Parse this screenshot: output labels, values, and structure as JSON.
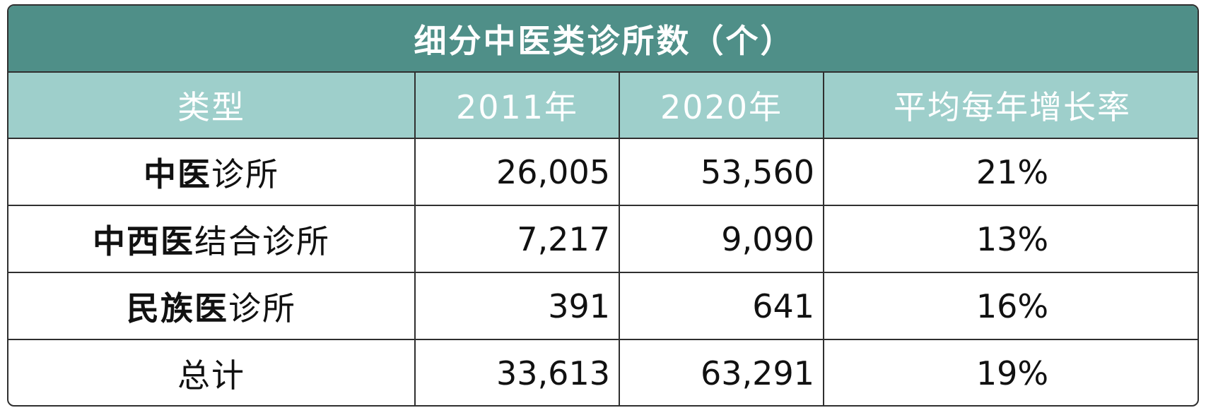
{
  "title": "细分中医类诊所数（个）",
  "columns": [
    "类型",
    "2011年",
    "2020年",
    "平均每年增长率"
  ],
  "rows": [
    {
      "type_bold": "中医",
      "type_rest": "诊所",
      "y2011": "26,005",
      "y2020": "53,560",
      "growth": "21%"
    },
    {
      "type_bold": "中西医",
      "type_rest": "结合诊所",
      "y2011": "7,217",
      "y2020": "9,090",
      "growth": "13%"
    },
    {
      "type_bold": "民族医",
      "type_rest": "诊所",
      "y2011": "391",
      "y2020": "641",
      "growth": "16%"
    },
    {
      "type_bold": "",
      "type_rest": "总计",
      "y2011": "33,613",
      "y2020": "63,291",
      "growth": "19%"
    }
  ],
  "colors": {
    "title_bg": "#4f8f88",
    "header_bg": "#9ecfcb",
    "border": "#2f2f2f",
    "header_text": "#ffffff"
  }
}
